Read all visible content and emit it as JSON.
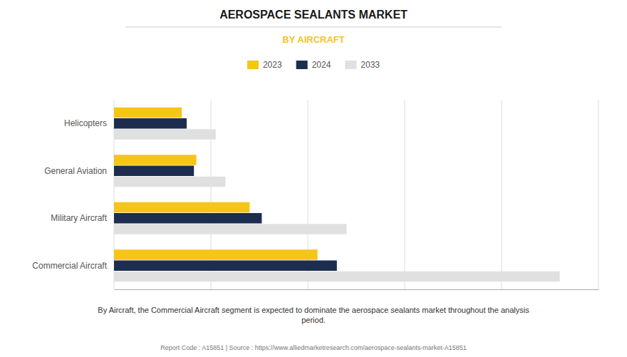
{
  "chart_data": {
    "type": "bar",
    "orientation": "horizontal",
    "title": "AEROSPACE SEALANTS MARKET",
    "subtitle": "BY AIRCRAFT",
    "categories": [
      "Commercial Aircraft",
      "Military Aircraft",
      "General Aviation",
      "Helicopters"
    ],
    "series": [
      {
        "name": "2023",
        "color": "#F5C518",
        "values": [
          4.2,
          2.8,
          1.7,
          1.4
        ]
      },
      {
        "name": "2024",
        "color": "#1C2D4F",
        "values": [
          4.6,
          3.05,
          1.65,
          1.5
        ]
      },
      {
        "name": "2033",
        "color": "#E0E0E0",
        "values": [
          9.2,
          4.8,
          2.3,
          2.1
        ]
      }
    ],
    "xlim": [
      0,
      10
    ],
    "xticks": [
      0,
      2,
      4,
      6,
      8,
      10
    ],
    "grid": true,
    "legend": "top",
    "tick_labels": "y",
    "annotations": [
      "By Aircraft, the Commercial Aircraft segment is expected to dominate the aerospace sealants market throughout the analysis\nperiod.",
      "Report Code : A15851  |  Source : https://www.alliedmarketresearch.com/aerospace-sealants-market-A15851"
    ]
  }
}
